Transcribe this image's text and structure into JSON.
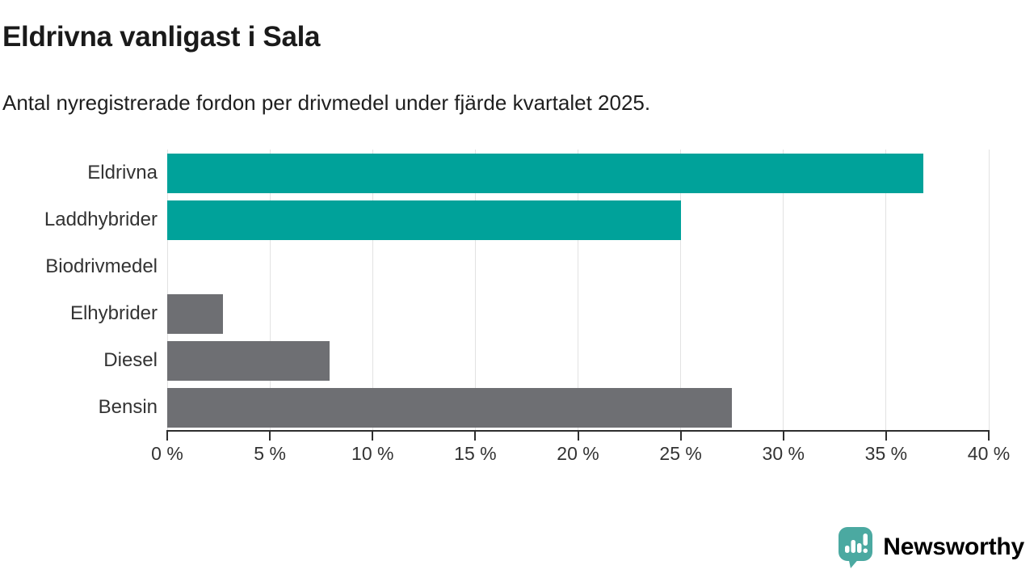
{
  "header": {
    "title": "Eldrivna vanligast i Sala",
    "subtitle": "Antal nyregistrerade fordon per drivmedel under fjärde kvartalet 2025."
  },
  "chart_data": {
    "type": "bar",
    "orientation": "horizontal",
    "title": "Eldrivna vanligast i Sala",
    "subtitle": "Antal nyregistrerade fordon per drivmedel under fjärde kvartalet 2025.",
    "categories": [
      "Eldrivna",
      "Laddhybrider",
      "Biodrivmedel",
      "Elhybrider",
      "Diesel",
      "Bensin"
    ],
    "values": [
      36.8,
      25.0,
      0,
      2.7,
      7.9,
      27.5
    ],
    "bar_colors": [
      "#00a29a",
      "#00a29a",
      "#6e6f73",
      "#6e6f73",
      "#6e6f73",
      "#6e6f73"
    ],
    "xlabel": "",
    "ylabel": "",
    "xlim": [
      0,
      40
    ],
    "x_ticks": [
      0,
      5,
      10,
      15,
      20,
      25,
      30,
      35,
      40
    ],
    "x_tick_labels": [
      "0 %",
      "5 %",
      "10 %",
      "15 %",
      "20 %",
      "25 %",
      "30 %",
      "35 %",
      "40 %"
    ],
    "grid": "vertical",
    "legend": "none"
  },
  "colors": {
    "highlight": "#00a29a",
    "neutral": "#6e6f73",
    "grid": "#e2e2e2",
    "axis": "#2e2e2e",
    "text": "#333333",
    "logo": "#4ba9a1"
  },
  "footer": {
    "brand_name": "Newsworthy",
    "brand_icon": "speech-bubble-bar-chart-icon"
  }
}
